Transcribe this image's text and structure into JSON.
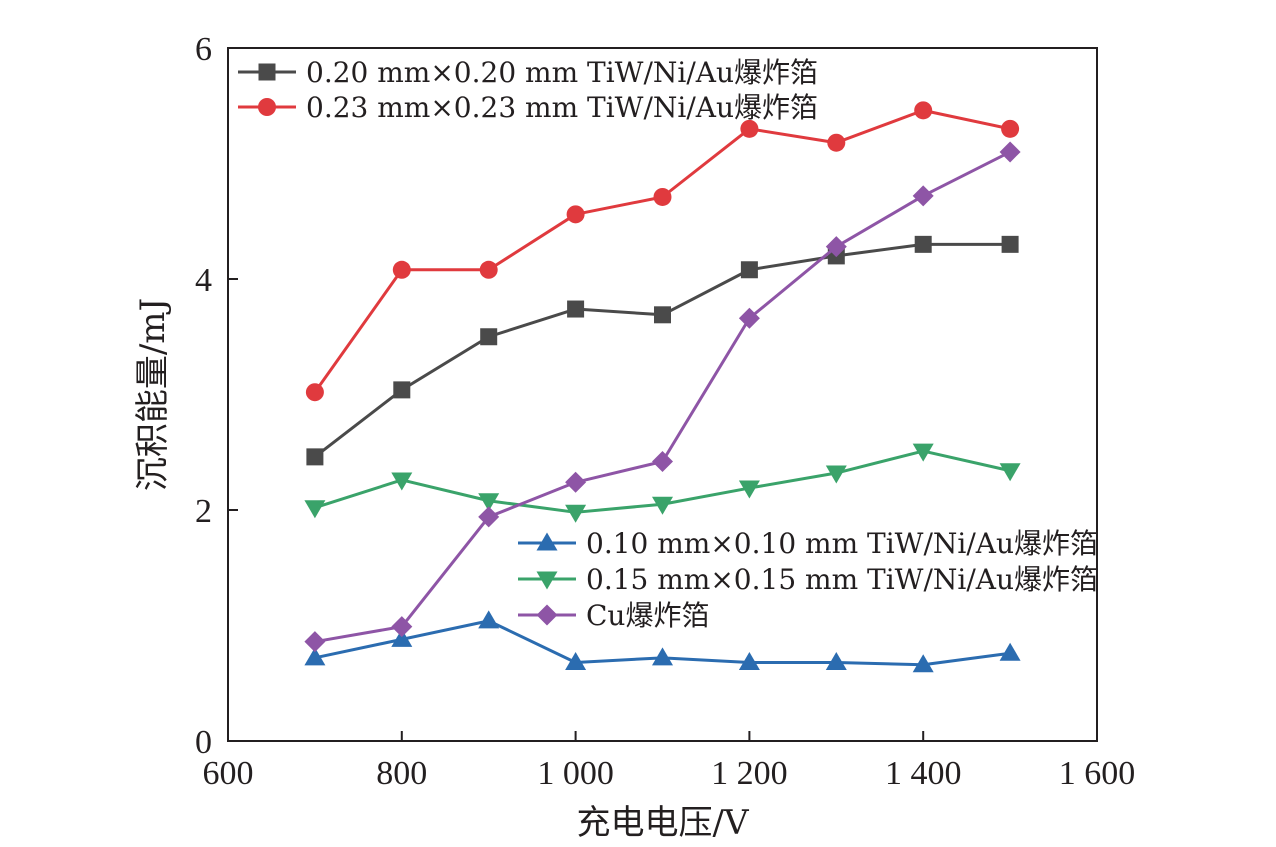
{
  "chart_data": {
    "type": "line",
    "xlabel": "充电电压/V",
    "ylabel": "沉积能量/mJ",
    "xlim": [
      600,
      1600
    ],
    "ylim": [
      0,
      6
    ],
    "xticks": [
      600,
      800,
      1000,
      1200,
      1400,
      1600
    ],
    "xtick_labels": [
      "600",
      "800",
      "1 000",
      "1 200",
      "1 400",
      "1 600"
    ],
    "yticks": [
      0,
      2,
      4,
      6
    ],
    "ytick_labels": [
      "0",
      "2",
      "4",
      "6"
    ],
    "grid": false,
    "x": [
      700,
      800,
      900,
      1000,
      1100,
      1200,
      1300,
      1400,
      1500
    ],
    "series": [
      {
        "name": "0.20 mm×0.20 mm TiW/Ni/Au爆炸箔",
        "color": "#4a4a4a",
        "marker": "square",
        "legend_group": "top",
        "values": [
          2.46,
          3.04,
          3.5,
          3.74,
          3.69,
          4.08,
          4.2,
          4.3,
          4.3
        ]
      },
      {
        "name": "0.23 mm×0.23 mm TiW/Ni/Au爆炸箔",
        "color": "#e03a3e",
        "marker": "circle",
        "legend_group": "top",
        "values": [
          3.02,
          4.08,
          4.08,
          4.56,
          4.71,
          5.3,
          5.18,
          5.46,
          5.3
        ]
      },
      {
        "name": "0.10 mm×0.10 mm TiW/Ni/Au爆炸箔",
        "color": "#2b6cb0",
        "marker": "triangle-up",
        "legend_group": "bottom",
        "values": [
          0.72,
          0.88,
          1.04,
          0.68,
          0.72,
          0.68,
          0.68,
          0.66,
          0.76
        ]
      },
      {
        "name": "0.15 mm×0.15 mm TiW/Ni/Au爆炸箔",
        "color": "#3aa36a",
        "marker": "triangle-down",
        "legend_group": "bottom",
        "values": [
          2.02,
          2.26,
          2.08,
          1.98,
          2.05,
          2.19,
          2.32,
          2.51,
          2.34
        ]
      },
      {
        "name": "Cu爆炸箔",
        "color": "#8e55a6",
        "marker": "diamond",
        "legend_group": "bottom",
        "values": [
          0.86,
          0.99,
          1.94,
          2.24,
          2.42,
          3.66,
          4.28,
          4.72,
          5.1
        ]
      }
    ]
  }
}
